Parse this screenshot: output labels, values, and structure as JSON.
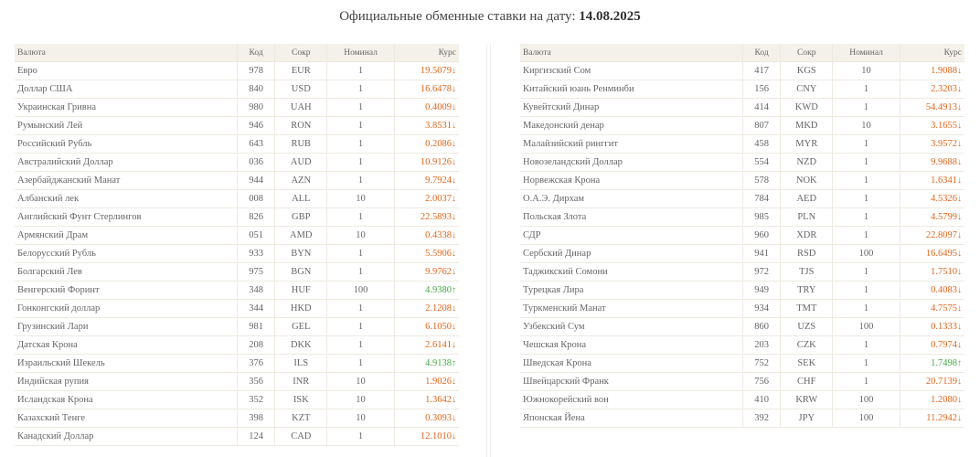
{
  "header": {
    "title_text": "Официальные обменные ставки на дату:",
    "date": "14.08.2025"
  },
  "columns": {
    "currency": "Валюта",
    "code": "Код",
    "abbr": "Сокр",
    "nominal": "Номинал",
    "rate": "Курс"
  },
  "colors": {
    "down": "#e2651c",
    "up": "#45a845",
    "header_bg": "#f4f1ea"
  },
  "arrows": {
    "down": "↓",
    "up": "↑"
  },
  "left_rows": [
    {
      "name": "Евро",
      "code": "978",
      "abbr": "EUR",
      "nominal": "1",
      "rate": "19.5079",
      "trend": "down"
    },
    {
      "name": "Доллар США",
      "code": "840",
      "abbr": "USD",
      "nominal": "1",
      "rate": "16.6478",
      "trend": "down"
    },
    {
      "name": "Украинская Гривна",
      "code": "980",
      "abbr": "UAH",
      "nominal": "1",
      "rate": "0.4009",
      "trend": "down"
    },
    {
      "name": "Румынский Лей",
      "code": "946",
      "abbr": "RON",
      "nominal": "1",
      "rate": "3.8531",
      "trend": "down"
    },
    {
      "name": "Российский Рубль",
      "code": "643",
      "abbr": "RUB",
      "nominal": "1",
      "rate": "0.2086",
      "trend": "down"
    },
    {
      "name": "Австралийский Доллар",
      "code": "036",
      "abbr": "AUD",
      "nominal": "1",
      "rate": "10.9126",
      "trend": "down"
    },
    {
      "name": "Азербайджанский Манат",
      "code": "944",
      "abbr": "AZN",
      "nominal": "1",
      "rate": "9.7924",
      "trend": "down"
    },
    {
      "name": "Албанский лек",
      "code": "008",
      "abbr": "ALL",
      "nominal": "10",
      "rate": "2.0037",
      "trend": "down"
    },
    {
      "name": "Английский Фунт Стерлингов",
      "code": "826",
      "abbr": "GBP",
      "nominal": "1",
      "rate": "22.5893",
      "trend": "down"
    },
    {
      "name": "Армянский Драм",
      "code": "051",
      "abbr": "AMD",
      "nominal": "10",
      "rate": "0.4338",
      "trend": "down"
    },
    {
      "name": "Белорусский Рубль",
      "code": "933",
      "abbr": "BYN",
      "nominal": "1",
      "rate": "5.5906",
      "trend": "down"
    },
    {
      "name": "Болгарский Лев",
      "code": "975",
      "abbr": "BGN",
      "nominal": "1",
      "rate": "9.9762",
      "trend": "down"
    },
    {
      "name": "Венгерский Форинт",
      "code": "348",
      "abbr": "HUF",
      "nominal": "100",
      "rate": "4.9380",
      "trend": "up"
    },
    {
      "name": "Гонконгский доллар",
      "code": "344",
      "abbr": "HKD",
      "nominal": "1",
      "rate": "2.1208",
      "trend": "down"
    },
    {
      "name": "Грузинский Лари",
      "code": "981",
      "abbr": "GEL",
      "nominal": "1",
      "rate": "6.1050",
      "trend": "down"
    },
    {
      "name": "Датская Крона",
      "code": "208",
      "abbr": "DKK",
      "nominal": "1",
      "rate": "2.6141",
      "trend": "down"
    },
    {
      "name": "Израильский Шекель",
      "code": "376",
      "abbr": "ILS",
      "nominal": "1",
      "rate": "4.9138",
      "trend": "up"
    },
    {
      "name": "Индийская рупия",
      "code": "356",
      "abbr": "INR",
      "nominal": "10",
      "rate": "1.9026",
      "trend": "down"
    },
    {
      "name": "Исландская Крона",
      "code": "352",
      "abbr": "ISK",
      "nominal": "10",
      "rate": "1.3642",
      "trend": "down"
    },
    {
      "name": "Казахский Тенге",
      "code": "398",
      "abbr": "KZT",
      "nominal": "10",
      "rate": "0.3093",
      "trend": "down"
    },
    {
      "name": "Канадский Доллар",
      "code": "124",
      "abbr": "CAD",
      "nominal": "1",
      "rate": "12.1010",
      "trend": "down"
    }
  ],
  "right_rows": [
    {
      "name": "Киргизский Сом",
      "code": "417",
      "abbr": "KGS",
      "nominal": "10",
      "rate": "1.9088",
      "trend": "down"
    },
    {
      "name": "Китайский юань Ренминби",
      "code": "156",
      "abbr": "CNY",
      "nominal": "1",
      "rate": "2.3203",
      "trend": "down"
    },
    {
      "name": "Кувейтский Динар",
      "code": "414",
      "abbr": "KWD",
      "nominal": "1",
      "rate": "54.4913",
      "trend": "down"
    },
    {
      "name": "Македонский денар",
      "code": "807",
      "abbr": "MKD",
      "nominal": "10",
      "rate": "3.1655",
      "trend": "down"
    },
    {
      "name": "Малайзийский ринггит",
      "code": "458",
      "abbr": "MYR",
      "nominal": "1",
      "rate": "3.9572",
      "trend": "down"
    },
    {
      "name": "Новозеландский Доллар",
      "code": "554",
      "abbr": "NZD",
      "nominal": "1",
      "rate": "9.9688",
      "trend": "down"
    },
    {
      "name": "Норвежская Крона",
      "code": "578",
      "abbr": "NOK",
      "nominal": "1",
      "rate": "1.6341",
      "trend": "down"
    },
    {
      "name": "О.А.Э. Дирхам",
      "code": "784",
      "abbr": "AED",
      "nominal": "1",
      "rate": "4.5326",
      "trend": "down"
    },
    {
      "name": "Польская Злота",
      "code": "985",
      "abbr": "PLN",
      "nominal": "1",
      "rate": "4.5799",
      "trend": "down"
    },
    {
      "name": "СДР",
      "code": "960",
      "abbr": "XDR",
      "nominal": "1",
      "rate": "22.8097",
      "trend": "down"
    },
    {
      "name": "Сербский Динар",
      "code": "941",
      "abbr": "RSD",
      "nominal": "100",
      "rate": "16.6495",
      "trend": "down"
    },
    {
      "name": "Таджикский Сомони",
      "code": "972",
      "abbr": "TJS",
      "nominal": "1",
      "rate": "1.7510",
      "trend": "down"
    },
    {
      "name": "Турецкая Лира",
      "code": "949",
      "abbr": "TRY",
      "nominal": "1",
      "rate": "0.4083",
      "trend": "down"
    },
    {
      "name": "Туркменский Манат",
      "code": "934",
      "abbr": "TMT",
      "nominal": "1",
      "rate": "4.7575",
      "trend": "down"
    },
    {
      "name": "Узбекский Сум",
      "code": "860",
      "abbr": "UZS",
      "nominal": "100",
      "rate": "0.1333",
      "trend": "down"
    },
    {
      "name": "Чешская Крона",
      "code": "203",
      "abbr": "CZK",
      "nominal": "1",
      "rate": "0.7974",
      "trend": "down"
    },
    {
      "name": "Шведская Крона",
      "code": "752",
      "abbr": "SEK",
      "nominal": "1",
      "rate": "1.7498",
      "trend": "up"
    },
    {
      "name": "Швейцарский Франк",
      "code": "756",
      "abbr": "CHF",
      "nominal": "1",
      "rate": "20.7139",
      "trend": "down"
    },
    {
      "name": "Южнокорейский вон",
      "code": "410",
      "abbr": "KRW",
      "nominal": "100",
      "rate": "1.2080",
      "trend": "down"
    },
    {
      "name": "Японская Йена",
      "code": "392",
      "abbr": "JPY",
      "nominal": "100",
      "rate": "11.2942",
      "trend": "down"
    }
  ]
}
